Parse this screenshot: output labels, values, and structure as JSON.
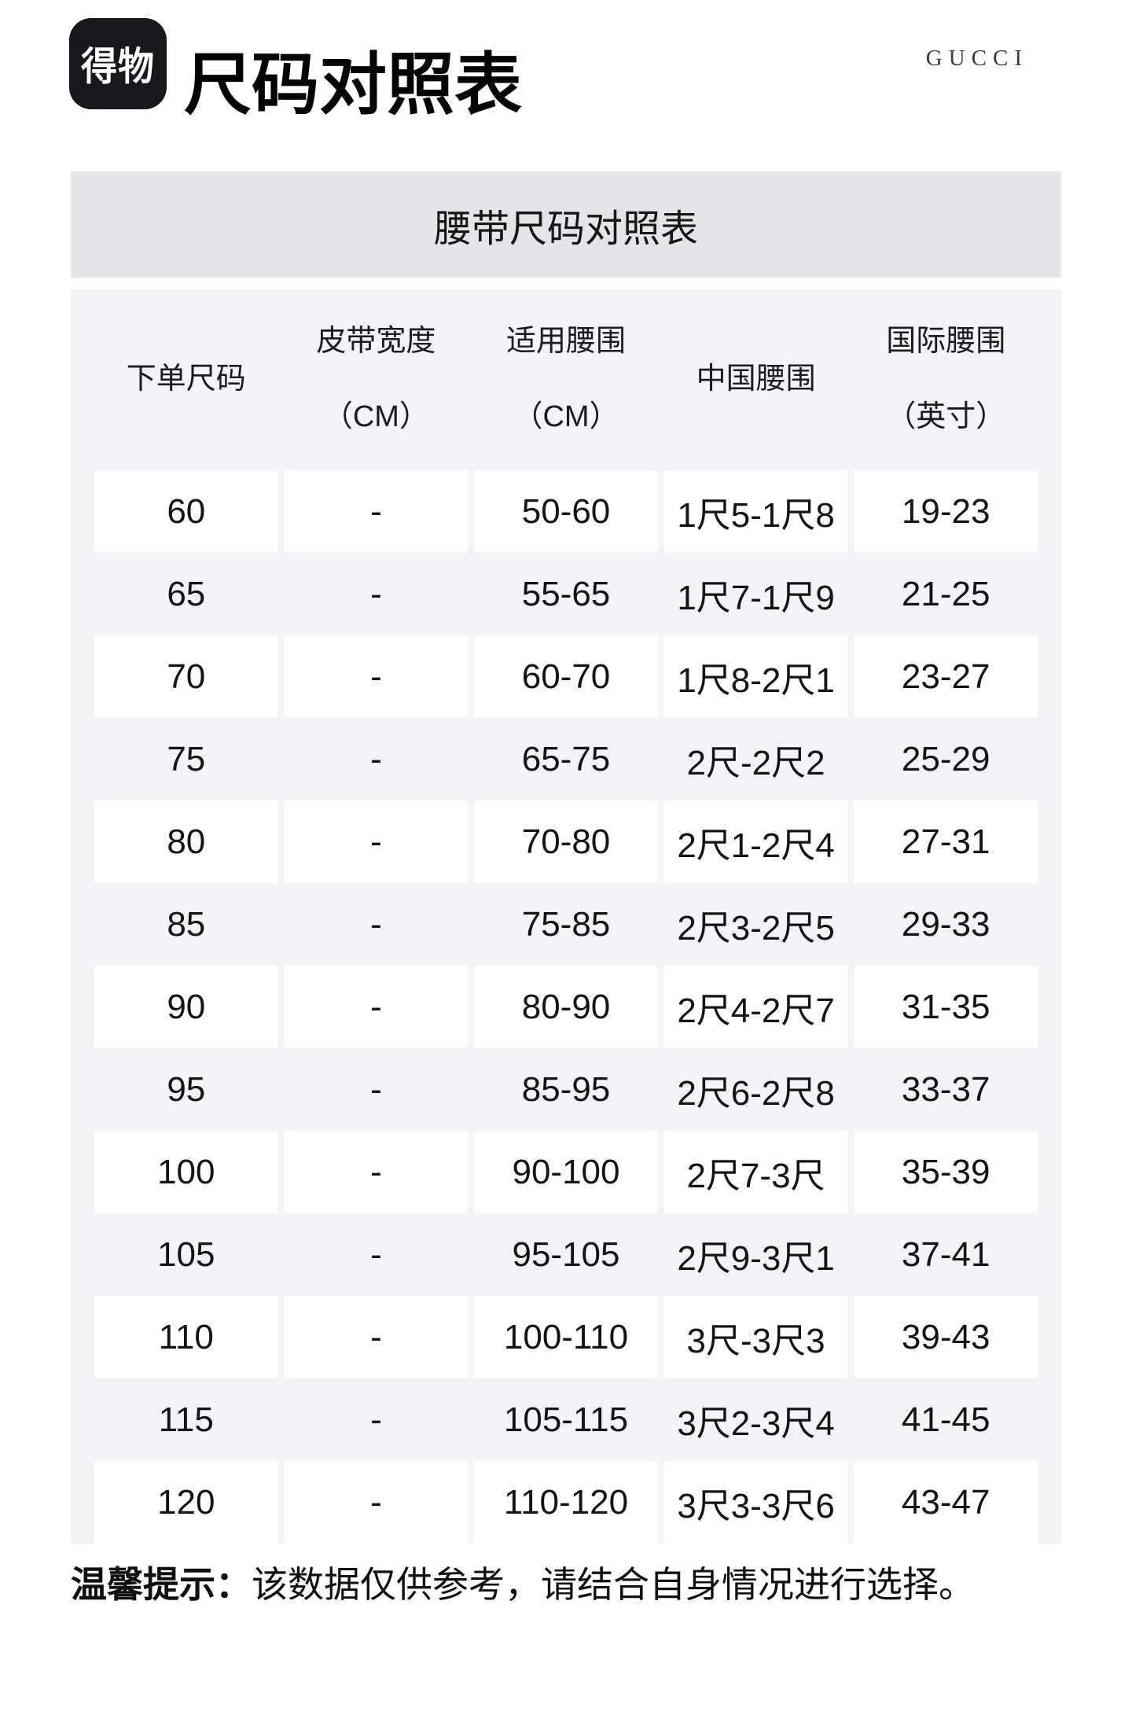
{
  "page": {
    "logo_text": "得物",
    "title": "尺码对照表",
    "brand": "GUCCI"
  },
  "table": {
    "title": "腰带尺码对照表",
    "columns": [
      {
        "line1": "下单尺码",
        "line2": ""
      },
      {
        "line1": "皮带宽度",
        "line2": "（CM）"
      },
      {
        "line1": "适用腰围",
        "line2": "（CM）"
      },
      {
        "line1": "中国腰围",
        "line2": ""
      },
      {
        "line1": "国际腰围",
        "line2": "（英寸）"
      }
    ],
    "rows": [
      [
        "60",
        "-",
        "50-60",
        "1尺5-1尺8",
        "19-23"
      ],
      [
        "65",
        "-",
        "55-65",
        "1尺7-1尺9",
        "21-25"
      ],
      [
        "70",
        "-",
        "60-70",
        "1尺8-2尺1",
        "23-27"
      ],
      [
        "75",
        "-",
        "65-75",
        "2尺-2尺2",
        "25-29"
      ],
      [
        "80",
        "-",
        "70-80",
        "2尺1-2尺4",
        "27-31"
      ],
      [
        "85",
        "-",
        "75-85",
        "2尺3-2尺5",
        "29-33"
      ],
      [
        "90",
        "-",
        "80-90",
        "2尺4-2尺7",
        "31-35"
      ],
      [
        "95",
        "-",
        "85-95",
        "2尺6-2尺8",
        "33-37"
      ],
      [
        "100",
        "-",
        "90-100",
        "2尺7-3尺",
        "35-39"
      ],
      [
        "105",
        "-",
        "95-105",
        "2尺9-3尺1",
        "37-41"
      ],
      [
        "110",
        "-",
        "100-110",
        "3尺-3尺3",
        "39-43"
      ],
      [
        "115",
        "-",
        "105-115",
        "3尺2-3尺4",
        "41-45"
      ],
      [
        "120",
        "-",
        "110-120",
        "3尺3-3尺6",
        "43-47"
      ]
    ]
  },
  "footer": {
    "tip_label": "温馨提示：",
    "tip_text": "该数据仅供参考，请结合自身情况进行选择。"
  },
  "colors": {
    "title_bar_bg": "#e4e4e9",
    "table_bg": "#f4f4f8",
    "row_cell_bg": "#ffffff",
    "logo_bg": "#16181d",
    "text": "#141414",
    "brand_text": "#3b3b3b"
  }
}
